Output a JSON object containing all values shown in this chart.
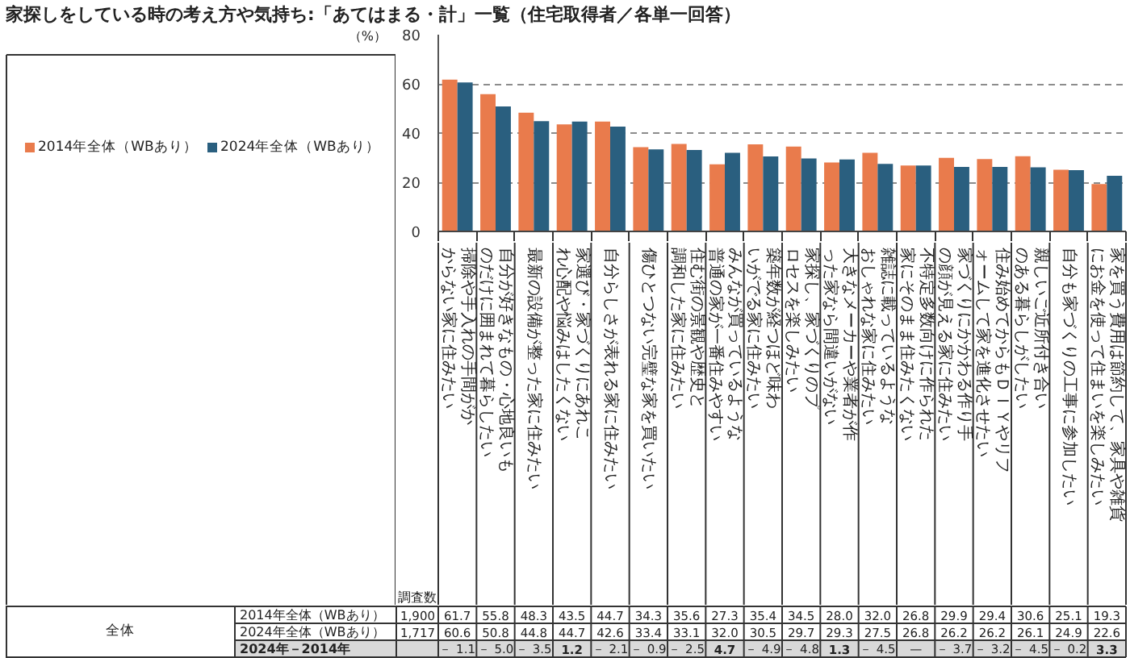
{
  "chart_data": {
    "type": "bar",
    "title": "家探しをしている時の考え方や気持ち:「あてはまる・計」一覧（住宅取得者／各単一回答）",
    "ylabel": "（%）",
    "categories": [
      "掃除や手入れの手間がかからない家に住みたい",
      "自分が好きなもの・心地良いものだけに囲まれて暮らしたい",
      "最新の設備が整った家に住みたい",
      "家選び・家づくりにあれこれ心配や悩みはしたくない",
      "自分らしさが表れる家に住みたい",
      "傷ひとつない完璧な家を買いたい",
      "住む街の景観や歴史と調和した家に住みたい",
      "みんなが買っているような普通の家が一番住みやすい",
      "築年数が経つほど味わいがでる家に住みたい",
      "家探し、家づくりのプロセスを楽しみたい",
      "大きなメーカーや業者が作った家なら間違いがない",
      "雑誌に載っているようなおしゃれな家に住みたい",
      "不特定多数向けに作られた家にそのまま住みたくない",
      "家づくりにかかわる作り手の顔が見える家に住みたい",
      "住み始めてからもＤＩＹやリフォームして家を進化させたい",
      "親しいご近所付き合いのある暮らしがしたい",
      "自分も家づくりの工事に参加したい",
      "家を買う費用は節約して、家具や雑貨にお金を使って住まいを楽しみたい"
    ],
    "series": [
      {
        "name": "2014年全体（WBあり）",
        "color": "#e97b4c",
        "values": [
          61.7,
          55.8,
          48.3,
          43.5,
          44.7,
          34.3,
          35.6,
          27.3,
          35.4,
          34.5,
          28.0,
          32.0,
          26.8,
          29.9,
          29.4,
          30.6,
          25.1,
          19.3
        ]
      },
      {
        "name": "2024年全体（WBあり）",
        "color": "#2a5f7f",
        "values": [
          60.6,
          50.8,
          44.8,
          44.7,
          42.6,
          33.4,
          33.1,
          32.0,
          30.5,
          29.7,
          29.3,
          27.5,
          26.8,
          26.2,
          26.2,
          26.1,
          24.9,
          22.6
        ]
      }
    ],
    "ylim": [
      0,
      80
    ],
    "yticks": [
      0,
      20,
      40,
      60,
      80
    ],
    "grid": "y",
    "legend": "left",
    "annotations": [
      "全体",
      "調査数",
      "1,900",
      "61.7",
      "55.8",
      "48.3",
      "43.5",
      "44.7",
      "34.3",
      "35.6",
      "27.3",
      "35.4",
      "34.5",
      "28.0",
      "32.0",
      "26.8",
      "29.9",
      "29.4",
      "30.6",
      "25.1",
      "19.3",
      "1,717",
      "60.6",
      "50.8",
      "44.8",
      "44.7",
      "42.6",
      "33.4",
      "33.1",
      "32.0",
      "30.5",
      "29.7",
      "29.3",
      "27.5",
      "26.8",
      "26.2",
      "26.2",
      "26.1",
      "24.9",
      "22.6",
      "2024年－2014年",
      "－ 1.1",
      "－ 5.0",
      "－ 3.5",
      "1.2",
      "－ 2.1",
      "－ 0.9",
      "－ 2.5",
      "4.7",
      "－ 4.9",
      "－ 4.8",
      "1.3",
      "－ 4.5",
      "—",
      "－ 3.7",
      "－ 3.2",
      "－ 4.5",
      "－ 0.2",
      "3.3"
    ]
  }
}
